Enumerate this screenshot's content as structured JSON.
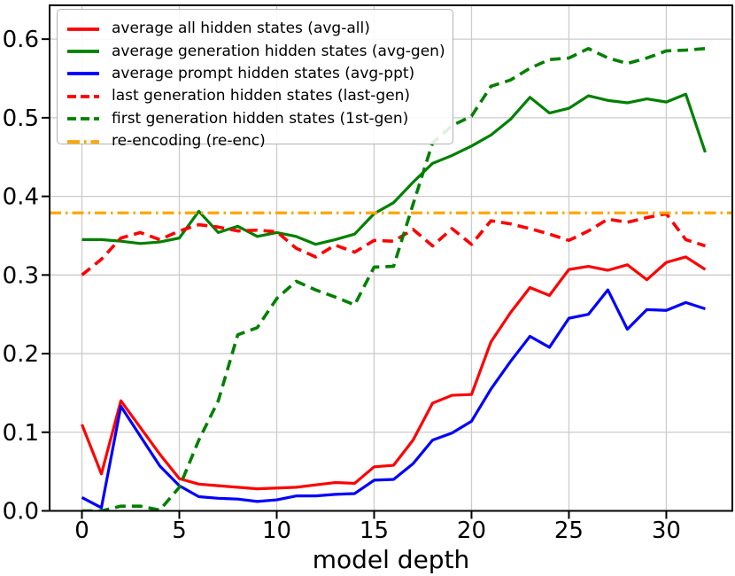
{
  "chart_data": {
    "type": "line",
    "title": "",
    "xlabel": "model depth",
    "ylabel": "",
    "xlim": [
      -1.66,
      33.39
    ],
    "ylim": [
      0,
      0.643
    ],
    "grid": true,
    "legend_position": "upper-left",
    "x_ticks": [
      0,
      5,
      10,
      15,
      20,
      25,
      30
    ],
    "y_ticks": [
      0.0,
      0.1,
      0.2,
      0.3,
      0.4,
      0.5,
      0.6
    ],
    "x_tick_labels": [
      "0",
      "5",
      "10",
      "15",
      "20",
      "25",
      "30"
    ],
    "y_tick_labels": [
      "0.0",
      "0.1",
      "0.2",
      "0.3",
      "0.4",
      "0.5",
      "0.6"
    ],
    "x": [
      0,
      1,
      2,
      3,
      4,
      5,
      6,
      7,
      8,
      9,
      10,
      11,
      12,
      13,
      14,
      15,
      16,
      17,
      18,
      19,
      20,
      21,
      22,
      23,
      24,
      25,
      26,
      27,
      28,
      29,
      30,
      31,
      32
    ],
    "series": [
      {
        "name": "average all hidden states (avg-all)",
        "short": "avg-all",
        "color": "#ff0000",
        "style": "solid",
        "values": [
          0.11,
          0.047,
          0.14,
          0.106,
          0.072,
          0.041,
          0.034,
          0.032,
          0.03,
          0.028,
          0.029,
          0.03,
          0.033,
          0.036,
          0.035,
          0.056,
          0.058,
          0.09,
          0.137,
          0.147,
          0.148,
          0.215,
          0.252,
          0.284,
          0.274,
          0.307,
          0.311,
          0.306,
          0.313,
          0.294,
          0.316,
          0.323,
          0.307
        ]
      },
      {
        "name": "average generation hidden states (avg-gen)",
        "short": "avg-gen",
        "color": "#008000",
        "style": "solid",
        "values": [
          0.345,
          0.345,
          0.343,
          0.34,
          0.342,
          0.347,
          0.381,
          0.354,
          0.362,
          0.349,
          0.354,
          0.349,
          0.339,
          0.345,
          0.352,
          0.378,
          0.392,
          0.418,
          0.442,
          0.452,
          0.464,
          0.478,
          0.498,
          0.526,
          0.506,
          0.512,
          0.528,
          0.522,
          0.519,
          0.524,
          0.52,
          0.53,
          0.456
        ]
      },
      {
        "name": "average prompt hidden states (avg-ppt)",
        "short": "avg-ppt",
        "color": "#0000ff",
        "style": "solid",
        "values": [
          0.017,
          0.004,
          0.133,
          0.095,
          0.057,
          0.032,
          0.018,
          0.016,
          0.015,
          0.012,
          0.014,
          0.019,
          0.019,
          0.021,
          0.022,
          0.039,
          0.04,
          0.06,
          0.09,
          0.099,
          0.114,
          0.155,
          0.19,
          0.222,
          0.208,
          0.245,
          0.25,
          0.281,
          0.231,
          0.256,
          0.255,
          0.265,
          0.257
        ]
      },
      {
        "name": "last generation hidden states (last-gen)",
        "short": "last-gen",
        "color": "#ff0000",
        "style": "dashed",
        "values": [
          0.3,
          0.32,
          0.347,
          0.354,
          0.345,
          0.356,
          0.364,
          0.361,
          0.356,
          0.357,
          0.355,
          0.334,
          0.323,
          0.338,
          0.329,
          0.344,
          0.343,
          0.358,
          0.337,
          0.359,
          0.339,
          0.369,
          0.365,
          0.359,
          0.352,
          0.344,
          0.356,
          0.371,
          0.367,
          0.373,
          0.378,
          0.345,
          0.337
        ]
      },
      {
        "name": "first generation hidden states (1st-gen)",
        "short": "1st-gen",
        "color": "#008000",
        "style": "dashed",
        "values": [
          0.0,
          0.0,
          0.006,
          0.006,
          0.001,
          0.03,
          0.09,
          0.14,
          0.224,
          0.233,
          0.27,
          0.292,
          0.281,
          0.272,
          0.262,
          0.31,
          0.311,
          0.39,
          0.468,
          0.49,
          0.502,
          0.54,
          0.548,
          0.563,
          0.574,
          0.576,
          0.588,
          0.576,
          0.569,
          0.576,
          0.585,
          0.586,
          0.588
        ]
      },
      {
        "name": "re-encoding (re-enc)",
        "short": "re-enc",
        "color": "#ffa500",
        "style": "dashdot",
        "full_width": true,
        "constant_value": 0.379,
        "values": null
      }
    ]
  },
  "colors": {
    "grid": "#cccccc",
    "axis": "#000000",
    "background": "#ffffff",
    "legend_border": "#b3b3b3"
  }
}
